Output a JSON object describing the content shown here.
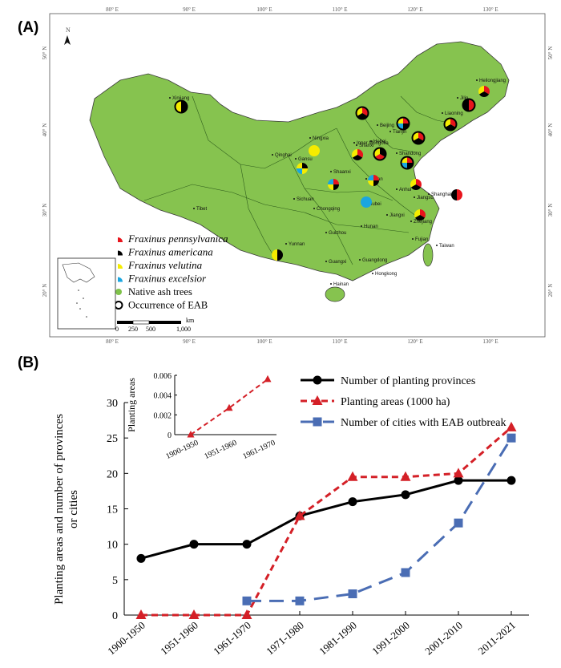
{
  "panel_a": {
    "label": "(A)",
    "lon_ticks": [
      "80° E",
      "90° E",
      "100° E",
      "110° E",
      "120° E",
      "130° E"
    ],
    "lat_ticks": [
      "50° N",
      "40° N",
      "30° N",
      "20° N"
    ],
    "north_arrow": "N",
    "provinces": [
      "Xinjiang",
      "Tibet",
      "Qinghai",
      "Gansu",
      "Ningxia",
      "Inner Mongolia",
      "Heilongjiang",
      "Jilin",
      "Liaoning",
      "Beijing",
      "Tianjin",
      "Hebei",
      "Shanxi",
      "Shandong",
      "Shaanxi",
      "Henan",
      "Sichuan",
      "Chongqing",
      "Hubei",
      "Anhui",
      "Jiangsu",
      "Shanghai",
      "Zhejiang",
      "Jiangxi",
      "Hunan",
      "Guizhou",
      "Yunnan",
      "Guangxi",
      "Guangdong",
      "Fujian",
      "Taiwan",
      "Hongkong",
      "Hainan"
    ],
    "legend": [
      {
        "label": "Fraxinus pennsylvanica",
        "italic": true,
        "symbol": "quarter",
        "color": "#e8141c"
      },
      {
        "label": "Fraxinus americana",
        "italic": true,
        "symbol": "quarter",
        "color": "#000000"
      },
      {
        "label": "Fraxinus velutina",
        "italic": true,
        "symbol": "quarter",
        "color": "#f5ec00"
      },
      {
        "label": "Fraxinus excelsior",
        "italic": true,
        "symbol": "quarter",
        "color": "#1aa6e0"
      },
      {
        "label": "Native ash trees",
        "italic": false,
        "symbol": "dot",
        "color": "#7fc24a"
      },
      {
        "label": "Occurrence of EAB",
        "italic": false,
        "symbol": "ring",
        "color": "#000000"
      }
    ],
    "scalebar": {
      "unit": "km",
      "ticks": [
        "0",
        "250",
        "500",
        "1,000"
      ]
    },
    "land_color": "#86c34f"
  },
  "panel_b": {
    "label": "(B)",
    "chart_data": {
      "type": "line",
      "categories": [
        "1900-1950",
        "1951-1960",
        "1961-1970",
        "1971-1980",
        "1981-1990",
        "1991-2000",
        "2001-2010",
        "2011-2021"
      ],
      "ylabel": "Planting areas and number of provinces or cities",
      "ylim": [
        0,
        30
      ],
      "yticks": [
        "0",
        "5",
        "10",
        "15",
        "20",
        "25",
        "30"
      ],
      "grid": false,
      "legend_placement": "top-right",
      "series": [
        {
          "name": "Number of planting provinces",
          "color": "#000000",
          "marker": "circle",
          "dash": "solid",
          "values": [
            8,
            10,
            10,
            14,
            16,
            17,
            19,
            19
          ]
        },
        {
          "name": "Planting areas (1000 ha)",
          "color": "#d42027",
          "marker": "triangle",
          "dash": "dashed",
          "values": [
            0,
            0,
            0,
            14,
            19.5,
            19.5,
            20,
            26.5
          ]
        },
        {
          "name": "Number of cities with EAB outbreak",
          "color": "#4a6db4",
          "marker": "square",
          "dash": "longdash",
          "values": [
            null,
            null,
            2,
            2,
            3,
            6,
            13,
            25
          ]
        }
      ],
      "inset": {
        "type": "line",
        "ylabel": "Planting areas",
        "categories": [
          "1900-1950",
          "1951-1960",
          "1961-1970"
        ],
        "yticks": [
          "0",
          "0.002",
          "0.004",
          "0.006"
        ],
        "ylim": [
          0,
          0.006
        ],
        "values": [
          0,
          0.0027,
          0.0056
        ],
        "color": "#d42027"
      }
    }
  }
}
